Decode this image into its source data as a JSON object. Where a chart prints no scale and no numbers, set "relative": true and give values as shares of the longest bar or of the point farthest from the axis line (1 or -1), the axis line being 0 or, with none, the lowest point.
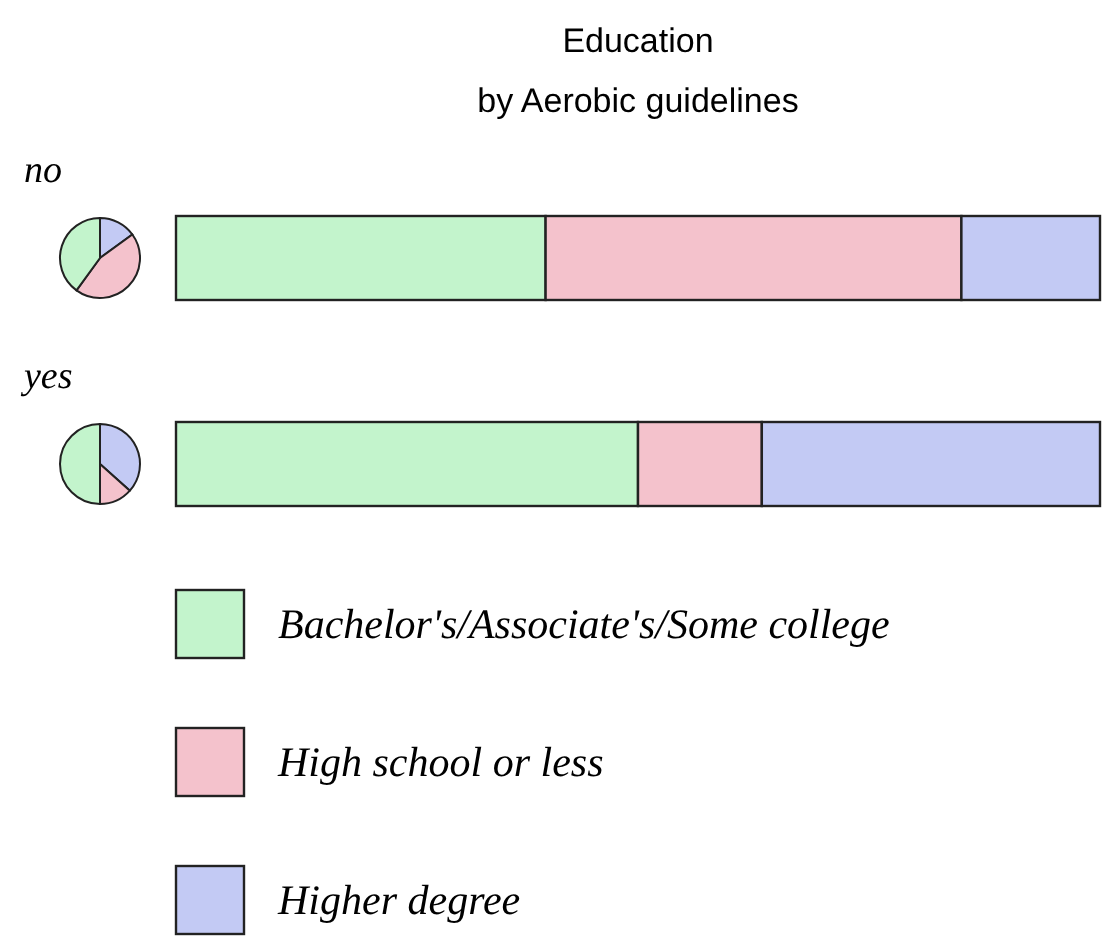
{
  "chart_data": {
    "type": "bar",
    "title": "Education\nby Aerobic guidelines",
    "categories": [
      "no",
      "yes"
    ],
    "orientation": "horizontal",
    "stacked": true,
    "relative": true,
    "legend": "bottom",
    "series": [
      {
        "name": "Bachelor's/Associate's/Some college",
        "color": "#c3f4cc",
        "values": [
          0.4,
          0.5
        ]
      },
      {
        "name": "High school or less",
        "color": "#f4c2cc",
        "values": [
          0.45,
          0.134
        ]
      },
      {
        "name": "Higher degree",
        "color": "#c3caf4",
        "values": [
          0.15,
          0.366
        ]
      }
    ]
  }
}
